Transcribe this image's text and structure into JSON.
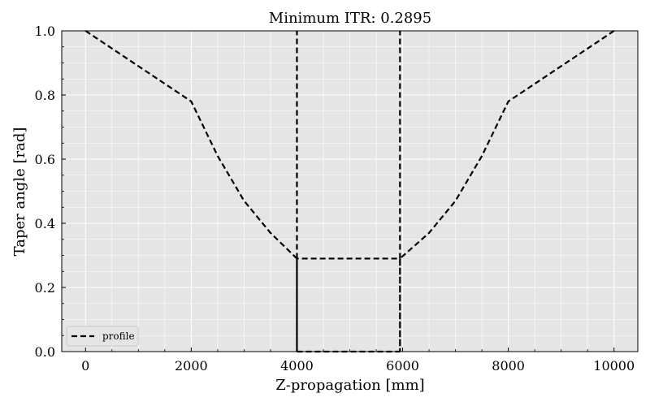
{
  "chart_data": {
    "type": "line",
    "title": "Minimum ITR: 0.2895",
    "xlabel": "Z-propagation [mm]",
    "ylabel": "Taper angle [rad]",
    "xlim": [
      -450,
      10450
    ],
    "ylim": [
      0.0,
      1.0
    ],
    "xticks": [
      0,
      2000,
      4000,
      6000,
      8000,
      10000
    ],
    "yticks": [
      0.0,
      0.2,
      0.4,
      0.6,
      0.8,
      1.0
    ],
    "xtick_labels": [
      "0",
      "2000",
      "4000",
      "6000",
      "8000",
      "10000"
    ],
    "ytick_labels": [
      "0.0",
      "0.2",
      "0.4",
      "0.6",
      "0.8",
      "1.0"
    ],
    "grid": true,
    "legend_position": "bottom-left",
    "series": [
      {
        "name": "profile",
        "color": "#000000",
        "linestyle": "dashed",
        "points": [
          [
            0,
            1.0
          ],
          [
            2000,
            0.78
          ],
          [
            2500,
            0.61
          ],
          [
            3000,
            0.47
          ],
          [
            3500,
            0.37
          ],
          [
            4000,
            0.29
          ],
          [
            4000,
            0.0
          ],
          [
            4000,
            0.29
          ],
          [
            5950,
            0.29
          ],
          [
            5950,
            0.0
          ],
          [
            5950,
            0.29
          ],
          [
            6500,
            0.37
          ],
          [
            7000,
            0.47
          ],
          [
            7500,
            0.61
          ],
          [
            8000,
            0.78
          ],
          [
            10000,
            1.0
          ]
        ]
      }
    ],
    "extra_segments": [
      {
        "from": [
          4000,
          0.0
        ],
        "to": [
          5950,
          0.0
        ],
        "color": "#000000",
        "linestyle": "dashed"
      },
      {
        "from": [
          4000,
          0.29
        ],
        "to": [
          4000,
          1.0
        ],
        "color": "#000000",
        "linestyle": "dashed"
      },
      {
        "from": [
          5950,
          0.29
        ],
        "to": [
          5950,
          1.0
        ],
        "color": "#000000",
        "linestyle": "dashed"
      }
    ],
    "colors": {
      "background": "#e5e5e5",
      "grid": "#ffffff",
      "line": "#000000"
    }
  }
}
